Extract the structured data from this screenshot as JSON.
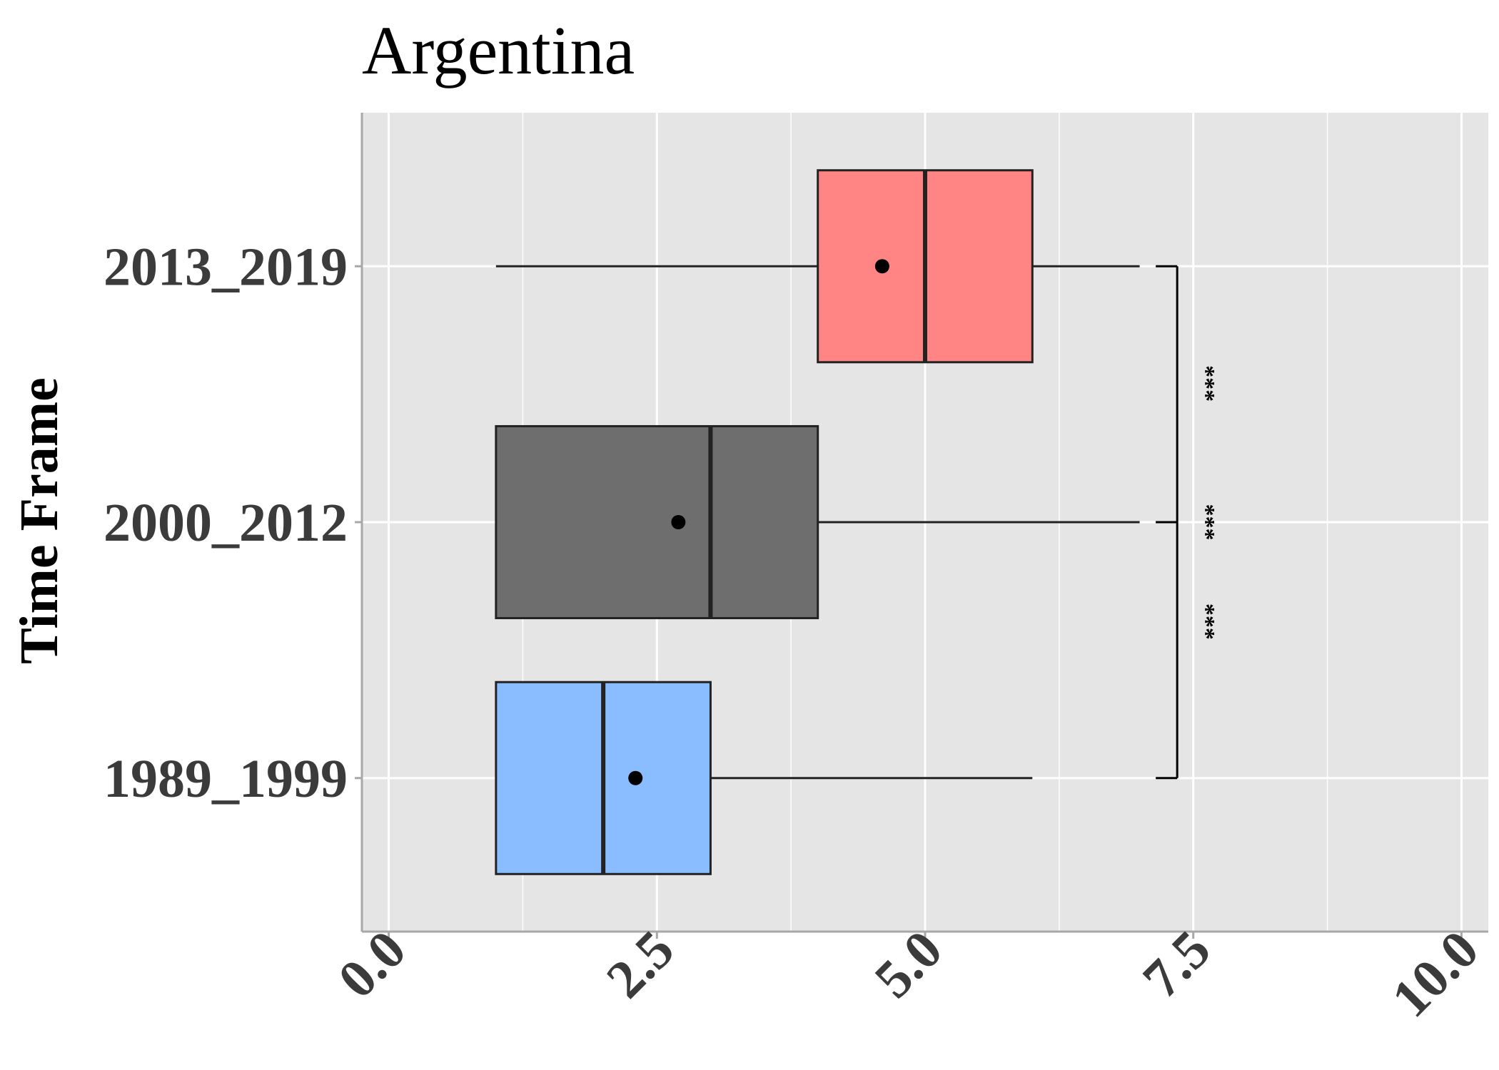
{
  "chart_data": {
    "type": "boxplot",
    "orientation": "horizontal",
    "title": "Argentina",
    "xlabel": "",
    "ylabel": "Time Frame",
    "xlim": [
      -0.25,
      10.25
    ],
    "x_ticks": [
      "0.0",
      "2.5",
      "5.0",
      "7.5",
      "10.0"
    ],
    "x_tick_values": [
      0,
      2.5,
      5,
      7.5,
      10
    ],
    "grid": true,
    "legend": "none",
    "background": "#e5e5e5",
    "categories": [
      "1989_1999",
      "2000_2012",
      "2013_2019"
    ],
    "boxes": [
      {
        "category": "1989_1999",
        "whisker_low": 1,
        "q1": 1,
        "median": 2,
        "q3": 3,
        "whisker_high": 6,
        "mean": 2.3,
        "color": "#8abdff"
      },
      {
        "category": "2000_2012",
        "whisker_low": 1,
        "q1": 1,
        "median": 3,
        "q3": 4,
        "whisker_high": 7,
        "mean": 2.7,
        "color": "#6e6e6e"
      },
      {
        "category": "2013_2019",
        "whisker_low": 1,
        "q1": 4,
        "median": 5,
        "q3": 6,
        "whisker_high": 7,
        "mean": 4.6,
        "color": "#ff8585"
      }
    ],
    "significance": [
      {
        "from": "1989_1999",
        "to": "2000_2012",
        "label": "***"
      },
      {
        "from": "2000_2012",
        "to": "2013_2019",
        "label": "***"
      },
      {
        "from": "1989_1999",
        "to": "2013_2019",
        "label": "***"
      }
    ]
  }
}
